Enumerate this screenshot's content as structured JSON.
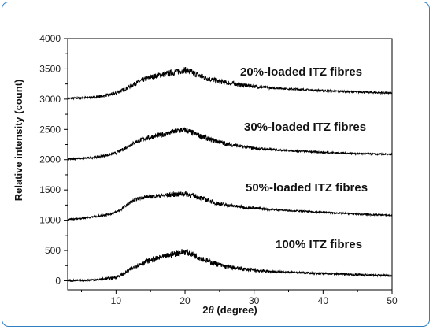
{
  "chart_data": {
    "type": "line",
    "xlabel_prefix": "2",
    "xlabel_theta": "θ",
    "xlabel_suffix": " (degree)",
    "ylabel": "Relative intensity (count)",
    "xlim": [
      3,
      50
    ],
    "ylim": [
      -150,
      4000
    ],
    "x_ticks": [
      10,
      20,
      30,
      40,
      50
    ],
    "y_ticks": [
      0,
      500,
      1000,
      1500,
      2000,
      2500,
      3000,
      3500,
      4000
    ],
    "line_color": "#000000",
    "series": [
      {
        "name": "20%-loaded ITZ fibres",
        "noise": 45,
        "x": [
          3,
          5,
          7,
          8,
          9,
          10,
          11,
          12,
          13,
          14,
          15,
          16,
          17,
          18,
          19,
          20,
          21,
          22,
          23,
          24,
          25,
          26,
          28,
          30,
          32,
          35,
          40,
          45,
          50
        ],
        "y": [
          3010,
          3020,
          3035,
          3050,
          3070,
          3100,
          3150,
          3210,
          3270,
          3320,
          3360,
          3390,
          3410,
          3430,
          3460,
          3480,
          3440,
          3390,
          3350,
          3320,
          3290,
          3270,
          3240,
          3210,
          3190,
          3170,
          3140,
          3120,
          3100
        ]
      },
      {
        "name": "30%-loaded ITZ fibres",
        "noise": 40,
        "x": [
          3,
          5,
          7,
          8,
          9,
          10,
          11,
          12,
          13,
          14,
          15,
          16,
          17,
          18,
          19,
          20,
          21,
          22,
          23,
          24,
          25,
          26,
          28,
          30,
          32,
          35,
          40,
          45,
          50
        ],
        "y": [
          2010,
          2020,
          2040,
          2060,
          2080,
          2110,
          2170,
          2240,
          2300,
          2340,
          2370,
          2400,
          2420,
          2450,
          2480,
          2490,
          2450,
          2400,
          2360,
          2320,
          2290,
          2260,
          2220,
          2190,
          2170,
          2150,
          2120,
          2100,
          2085
        ]
      },
      {
        "name": "50%-loaded ITZ fibres",
        "noise": 35,
        "x": [
          3,
          5,
          7,
          8,
          9,
          10,
          11,
          12,
          13,
          14,
          15,
          16,
          17,
          18,
          19,
          20,
          21,
          22,
          23,
          24,
          25,
          26,
          28,
          30,
          32,
          35,
          40,
          45,
          50
        ],
        "y": [
          1010,
          1030,
          1060,
          1080,
          1100,
          1130,
          1200,
          1290,
          1350,
          1380,
          1390,
          1400,
          1410,
          1420,
          1430,
          1440,
          1410,
          1380,
          1340,
          1300,
          1270,
          1250,
          1220,
          1200,
          1180,
          1160,
          1130,
          1100,
          1080
        ]
      },
      {
        "name": "100% ITZ fibres",
        "noise": 45,
        "x": [
          3,
          5,
          7,
          8,
          9,
          10,
          11,
          12,
          13,
          14,
          15,
          16,
          17,
          18,
          19,
          20,
          21,
          22,
          23,
          24,
          25,
          26,
          28,
          30,
          32,
          35,
          40,
          45,
          50
        ],
        "y": [
          0,
          5,
          15,
          25,
          40,
          60,
          110,
          180,
          250,
          300,
          340,
          370,
          400,
          430,
          460,
          480,
          440,
          390,
          340,
          300,
          260,
          230,
          200,
          175,
          155,
          140,
          120,
          100,
          85
        ]
      }
    ]
  }
}
